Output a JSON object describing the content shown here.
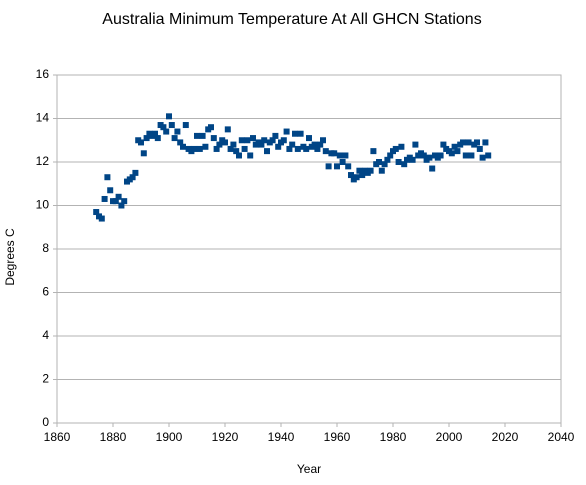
{
  "chart_data": {
    "type": "scatter",
    "title": "Australia Minimum Temperature  At All GHCN Stations",
    "x_label": "Year",
    "y_label": "Degrees C",
    "color": "#004586",
    "grid": true,
    "xlim": [
      1860,
      2040
    ],
    "xticks": [
      1860,
      1880,
      1900,
      1920,
      1940,
      1960,
      1980,
      2000,
      2020,
      2040
    ],
    "ylim": [
      0,
      16
    ],
    "yticks": [
      0,
      2,
      4,
      6,
      8,
      10,
      12,
      14,
      16
    ],
    "x": [
      1874,
      1875,
      1876,
      1877,
      1878,
      1879,
      1880,
      1881,
      1882,
      1883,
      1884,
      1885,
      1886,
      1887,
      1888,
      1889,
      1890,
      1891,
      1892,
      1893,
      1894,
      1895,
      1896,
      1897,
      1898,
      1899,
      1900,
      1901,
      1902,
      1903,
      1904,
      1905,
      1906,
      1907,
      1908,
      1909,
      1910,
      1911,
      1912,
      1913,
      1914,
      1915,
      1916,
      1917,
      1918,
      1919,
      1920,
      1921,
      1922,
      1923,
      1924,
      1925,
      1926,
      1927,
      1928,
      1929,
      1930,
      1931,
      1932,
      1933,
      1934,
      1935,
      1936,
      1937,
      1938,
      1939,
      1940,
      1941,
      1942,
      1943,
      1944,
      1945,
      1946,
      1947,
      1948,
      1949,
      1950,
      1951,
      1952,
      1953,
      1954,
      1955,
      1956,
      1957,
      1958,
      1959,
      1960,
      1961,
      1962,
      1963,
      1964,
      1965,
      1966,
      1967,
      1968,
      1969,
      1970,
      1971,
      1972,
      1973,
      1974,
      1975,
      1976,
      1977,
      1978,
      1979,
      1980,
      1981,
      1982,
      1983,
      1984,
      1985,
      1986,
      1987,
      1988,
      1989,
      1990,
      1991,
      1992,
      1993,
      1994,
      1995,
      1996,
      1997,
      1998,
      1999,
      2000,
      2001,
      2002,
      2003,
      2004,
      2005,
      2006,
      2007,
      2008,
      2009,
      2010,
      2011,
      2012,
      2013,
      2014
    ],
    "values": [
      9.7,
      9.5,
      9.4,
      10.3,
      11.3,
      10.7,
      10.2,
      10.2,
      10.4,
      10.0,
      10.2,
      11.1,
      11.2,
      11.3,
      11.5,
      13.0,
      12.9,
      12.4,
      13.1,
      13.3,
      13.2,
      13.3,
      13.1,
      13.7,
      13.6,
      13.4,
      14.1,
      13.7,
      13.1,
      13.4,
      12.9,
      12.7,
      13.7,
      12.6,
      12.5,
      12.6,
      13.2,
      12.6,
      13.2,
      12.7,
      13.5,
      13.6,
      13.1,
      12.6,
      12.8,
      13.0,
      12.9,
      13.5,
      12.6,
      12.8,
      12.5,
      12.3,
      13.0,
      12.6,
      13.0,
      12.3,
      13.1,
      12.8,
      12.9,
      12.8,
      13.0,
      12.5,
      12.9,
      13.0,
      13.2,
      12.7,
      12.9,
      13.0,
      13.4,
      12.6,
      12.8,
      13.3,
      12.6,
      13.3,
      12.7,
      12.6,
      13.1,
      12.7,
      12.8,
      12.6,
      12.8,
      13.0,
      12.5,
      11.8,
      12.4,
      12.4,
      11.8,
      12.3,
      12.0,
      12.3,
      11.8,
      11.4,
      11.2,
      11.3,
      11.6,
      11.4,
      11.6,
      11.5,
      11.6,
      12.5,
      11.9,
      12.0,
      11.6,
      11.9,
      12.1,
      12.3,
      12.5,
      12.6,
      12.0,
      12.7,
      11.9,
      12.1,
      12.2,
      12.1,
      12.8,
      12.3,
      12.4,
      12.3,
      12.1,
      12.2,
      11.7,
      12.3,
      12.2,
      12.3,
      12.8,
      12.6,
      12.5,
      12.4,
      12.7,
      12.5,
      12.8,
      12.9,
      12.3,
      12.9,
      12.3,
      12.8,
      12.9,
      12.6,
      12.2,
      12.9,
      12.3
    ]
  }
}
